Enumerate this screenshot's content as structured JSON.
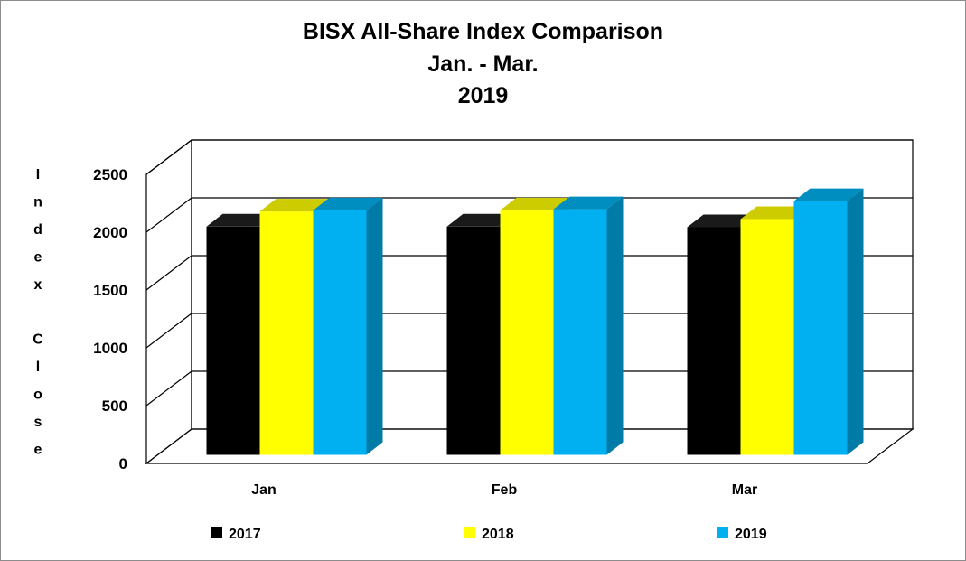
{
  "chart_data": {
    "type": "bar",
    "title_lines": [
      "BISX All-Share Index Comparison",
      "Jan. - Mar.",
      "2019"
    ],
    "ylabel": "Index Close",
    "categories": [
      "Jan",
      "Feb",
      "Mar"
    ],
    "ylim": [
      0,
      2500
    ],
    "yticks": [
      "0",
      "500",
      "1000",
      "1500",
      "2000",
      "2500"
    ],
    "grid": true,
    "legend_position": "bottom",
    "series": [
      {
        "name": "2017",
        "color": "#000000",
        "values": [
          1900,
          1900,
          1895
        ]
      },
      {
        "name": "2018",
        "color": "#ffff00",
        "values": [
          2030,
          2040,
          1965
        ]
      },
      {
        "name": "2019",
        "color": "#00b0f0",
        "values": [
          2040,
          2050,
          2120
        ]
      }
    ]
  }
}
